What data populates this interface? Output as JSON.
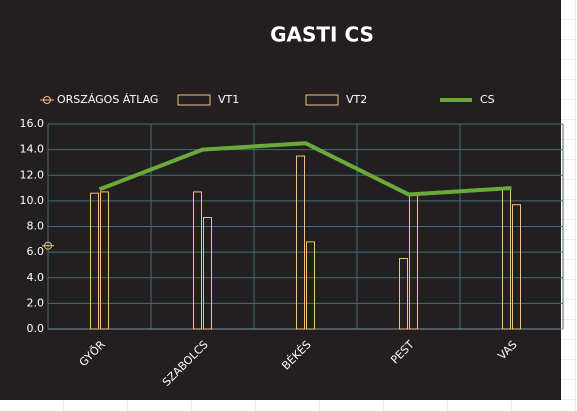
{
  "chart_data": {
    "type": "bar",
    "title": "GASTI CS",
    "categories": [
      "GYŐR",
      "SZABOLCS",
      "BÉKÉS",
      "PEST",
      "VAS"
    ],
    "series": [
      {
        "name": "VT1",
        "type": "bar",
        "color": "#f2c27e",
        "values": [
          10.6,
          10.7,
          13.5,
          5.5,
          11.0
        ]
      },
      {
        "name": "VT2",
        "type": "bar",
        "color": "#f2c27e",
        "values": [
          10.7,
          8.7,
          6.8,
          10.5,
          9.7
        ]
      },
      {
        "name": "CS",
        "type": "line",
        "color": "#6aaa3a",
        "values": [
          10.9,
          14.0,
          14.5,
          10.5,
          11.0
        ]
      }
    ],
    "reference": {
      "name": "ORSZÁGOS ÁTLAG",
      "color": "#f2c27e",
      "value": 6.5
    },
    "ylim": [
      0,
      16
    ],
    "yticks": [
      {
        "value": 0,
        "label": "0.0"
      },
      {
        "value": 2,
        "label": "2.0"
      },
      {
        "value": 4,
        "label": "4.0"
      },
      {
        "value": 6,
        "label": "6.0"
      },
      {
        "value": 8,
        "label": "8.0"
      },
      {
        "value": 10,
        "label": "10.0"
      },
      {
        "value": 12,
        "label": "12.0"
      },
      {
        "value": 14,
        "label": "14.0"
      },
      {
        "value": 16,
        "label": "16.0"
      }
    ],
    "grid": true
  }
}
